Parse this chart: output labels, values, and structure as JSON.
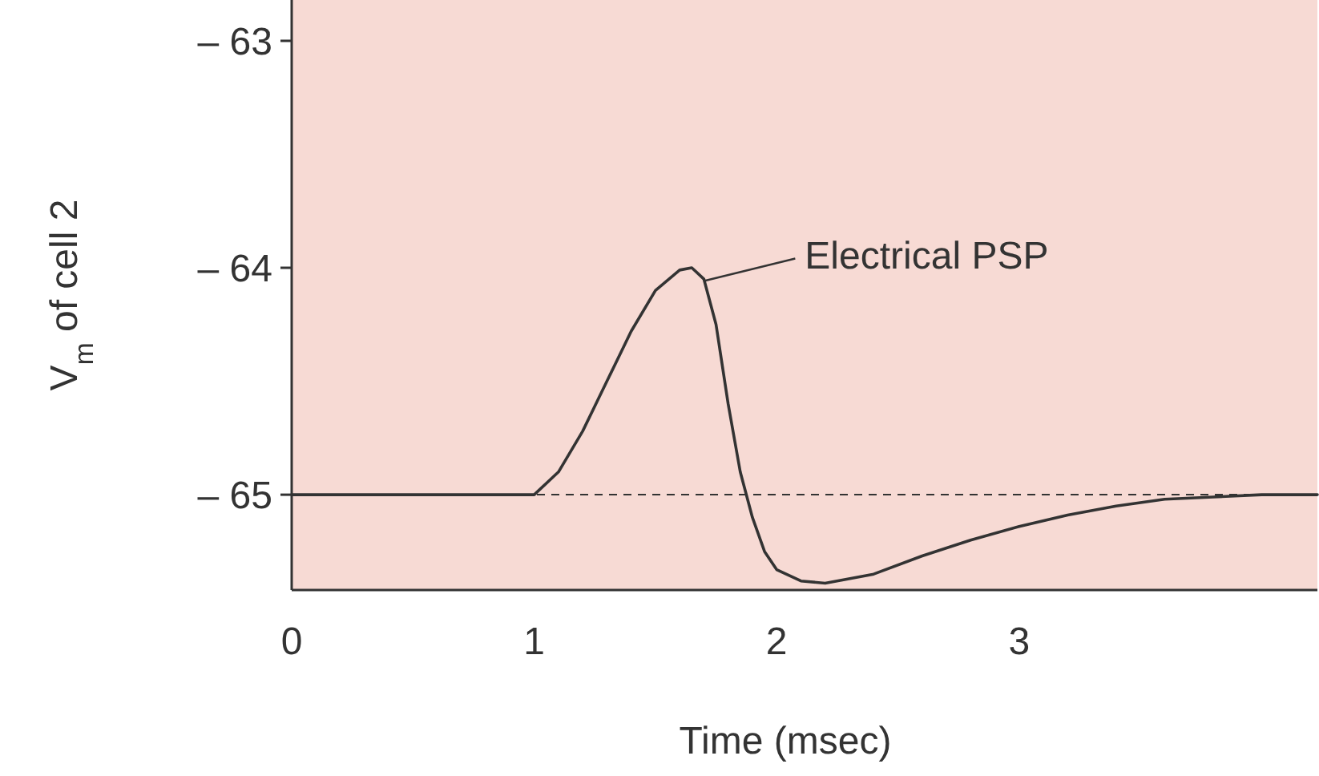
{
  "chart_data": {
    "type": "line",
    "xlabel": "Time (msec)",
    "ylabel": "V$_{m}$ of cell 2",
    "x": [
      0,
      1,
      1.1,
      1.2,
      1.3,
      1.4,
      1.5,
      1.6,
      1.65,
      1.7,
      1.75,
      1.8,
      1.85,
      1.9,
      1.95,
      2.0,
      2.1,
      2.2,
      2.4,
      2.6,
      2.8,
      3.0,
      3.2,
      3.4,
      3.6,
      3.8,
      4.0,
      4.23
    ],
    "series": [
      {
        "color": "#333333",
        "values": [
          -65,
          -65,
          -64.9,
          -64.72,
          -64.5,
          -64.28,
          -64.1,
          -64.01,
          -64.0,
          -64.05,
          -64.25,
          -64.6,
          -64.9,
          -65.1,
          -65.25,
          -65.33,
          -65.38,
          -65.39,
          -65.35,
          -65.27,
          -65.2,
          -65.14,
          -65.09,
          -65.05,
          -65.02,
          -65.01,
          -65,
          -65
        ]
      }
    ],
    "xlim": [
      0,
      4.23
    ],
    "ylim": [
      -65.42,
      -62.82
    ],
    "xticks": [
      0,
      1,
      2,
      3
    ],
    "yticks": [
      {
        "value": -63,
        "label": "– 63"
      },
      {
        "value": -64,
        "label": "– 64"
      },
      {
        "value": -65,
        "label": "– 65"
      }
    ],
    "ref_lines": [
      {
        "axis": "y",
        "value": -65,
        "line_style": "dashed",
        "color": "#333333"
      }
    ],
    "annotations": [
      {
        "text": "Electrical PSP",
        "x": 1.68,
        "y": -64.03
      }
    ],
    "grid": false,
    "marker": "none",
    "line_style": "solid"
  }
}
